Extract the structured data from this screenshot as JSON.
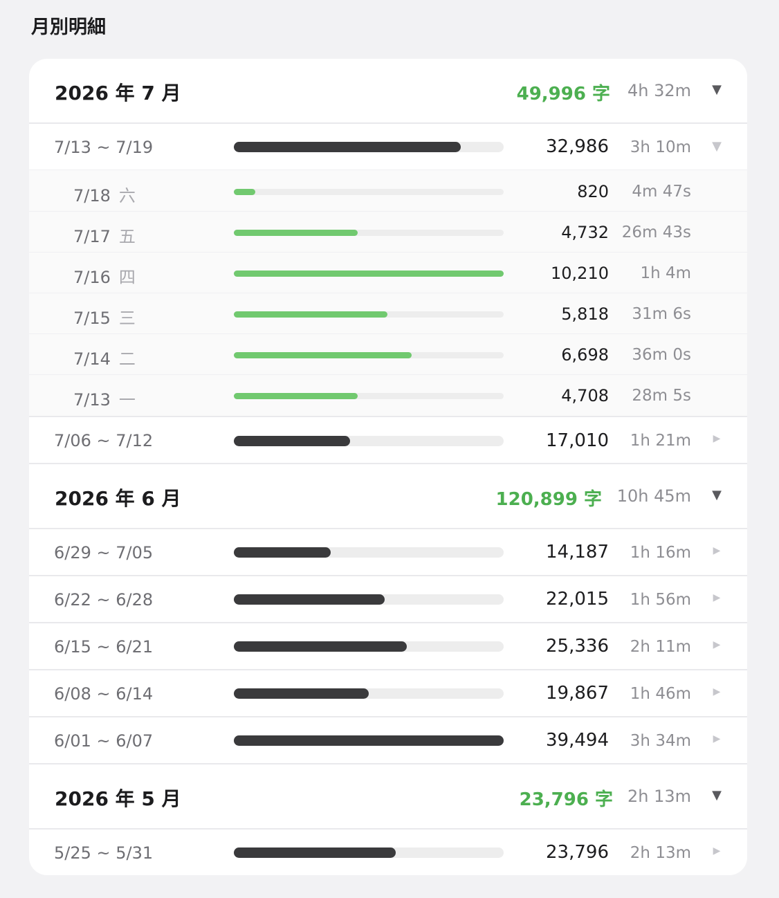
{
  "title": "月別明細",
  "months": [
    {
      "label": "2026 年 7 月",
      "chars": "49,996 字",
      "time": "4h 32m",
      "caret": "▼",
      "weeks": [
        {
          "label": "7/13 ~ 7/19",
          "progress": 0.84,
          "count": "32,986",
          "time": "3h 10m",
          "caret": "▼",
          "days": [
            {
              "date": "7/18",
              "weekday": "六",
              "progress": 0.08,
              "count": "820",
              "time": "4m 47s"
            },
            {
              "date": "7/17",
              "weekday": "五",
              "progress": 0.46,
              "count": "4,732",
              "time": "26m 43s"
            },
            {
              "date": "7/16",
              "weekday": "四",
              "progress": 1.0,
              "count": "10,210",
              "time": "1h 4m"
            },
            {
              "date": "7/15",
              "weekday": "三",
              "progress": 0.57,
              "count": "5,818",
              "time": "31m 6s"
            },
            {
              "date": "7/14",
              "weekday": "二",
              "progress": 0.66,
              "count": "6,698",
              "time": "36m 0s"
            },
            {
              "date": "7/13",
              "weekday": "一",
              "progress": 0.46,
              "count": "4,708",
              "time": "28m 5s"
            }
          ]
        },
        {
          "label": "7/06 ~ 7/12",
          "progress": 0.43,
          "count": "17,010",
          "time": "1h 21m",
          "caret": "▶"
        }
      ]
    },
    {
      "label": "2026 年 6 月",
      "chars": "120,899 字",
      "time": "10h 45m",
      "caret": "▼",
      "weeks": [
        {
          "label": "6/29 ~ 7/05",
          "progress": 0.36,
          "count": "14,187",
          "time": "1h 16m",
          "caret": "▶"
        },
        {
          "label": "6/22 ~ 6/28",
          "progress": 0.56,
          "count": "22,015",
          "time": "1h 56m",
          "caret": "▶"
        },
        {
          "label": "6/15 ~ 6/21",
          "progress": 0.64,
          "count": "25,336",
          "time": "2h 11m",
          "caret": "▶"
        },
        {
          "label": "6/08 ~ 6/14",
          "progress": 0.5,
          "count": "19,867",
          "time": "1h 46m",
          "caret": "▶"
        },
        {
          "label": "6/01 ~ 6/07",
          "progress": 1.0,
          "count": "39,494",
          "time": "3h 34m",
          "caret": "▶"
        }
      ]
    },
    {
      "label": "2026 年 5 月",
      "chars": "23,796 字",
      "time": "2h 13m",
      "caret": "▼",
      "weeks": [
        {
          "label": "5/25 ~ 5/31",
          "progress": 0.6,
          "count": "23,796",
          "time": "2h 13m",
          "caret": "▶"
        }
      ]
    }
  ],
  "colors": {
    "accent_green": "#4caf50",
    "bar_dark": "#3a3a3c",
    "bar_green": "#71c96f",
    "track": "#ededed"
  }
}
